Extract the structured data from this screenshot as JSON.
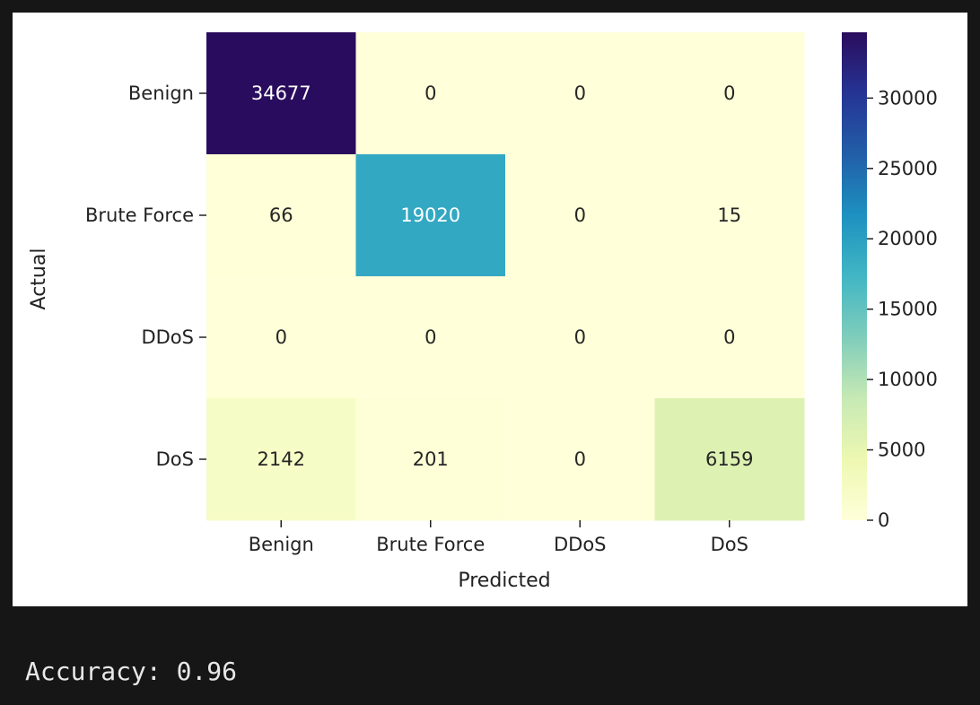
{
  "chart_data": {
    "type": "heatmap",
    "title": "",
    "xlabel": "Predicted",
    "ylabel": "Actual",
    "x_categories": [
      "Benign",
      "Brute Force",
      "DDoS",
      "DoS"
    ],
    "y_categories": [
      "Benign",
      "Brute Force",
      "DDoS",
      "DoS"
    ],
    "values": [
      [
        34677,
        0,
        0,
        0
      ],
      [
        66,
        19020,
        0,
        15
      ],
      [
        0,
        0,
        0,
        0
      ],
      [
        2142,
        201,
        0,
        6159
      ]
    ],
    "colormap": "YlGnBu",
    "colorbar": {
      "min": 0,
      "max": 34677,
      "ticks": [
        0,
        5000,
        10000,
        15000,
        20000,
        25000,
        30000
      ]
    },
    "annotate": true
  },
  "output": {
    "accuracy_text": "Accuracy: 0.96"
  }
}
